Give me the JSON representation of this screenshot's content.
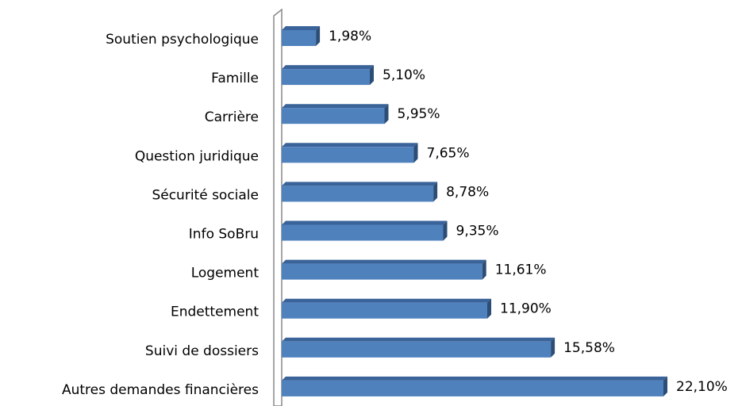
{
  "chart_data": {
    "type": "bar",
    "orientation": "horizontal",
    "categories": [
      "Soutien psychologique",
      "Famille",
      "Carrière",
      "Question juridique",
      "Sécurité sociale",
      "Info SoBru",
      "Logement",
      "Endettement",
      "Suivi de dossiers",
      "Autres demandes financières"
    ],
    "values": [
      1.98,
      5.1,
      5.95,
      7.65,
      8.78,
      9.35,
      11.61,
      11.9,
      15.58,
      22.1
    ],
    "value_labels": [
      "1,98%",
      "5,10%",
      "5,95%",
      "7,65%",
      "8,78%",
      "9,35%",
      "11,61%",
      "11,90%",
      "15,58%",
      "22,10%"
    ],
    "color": "#4f81bd"
  }
}
